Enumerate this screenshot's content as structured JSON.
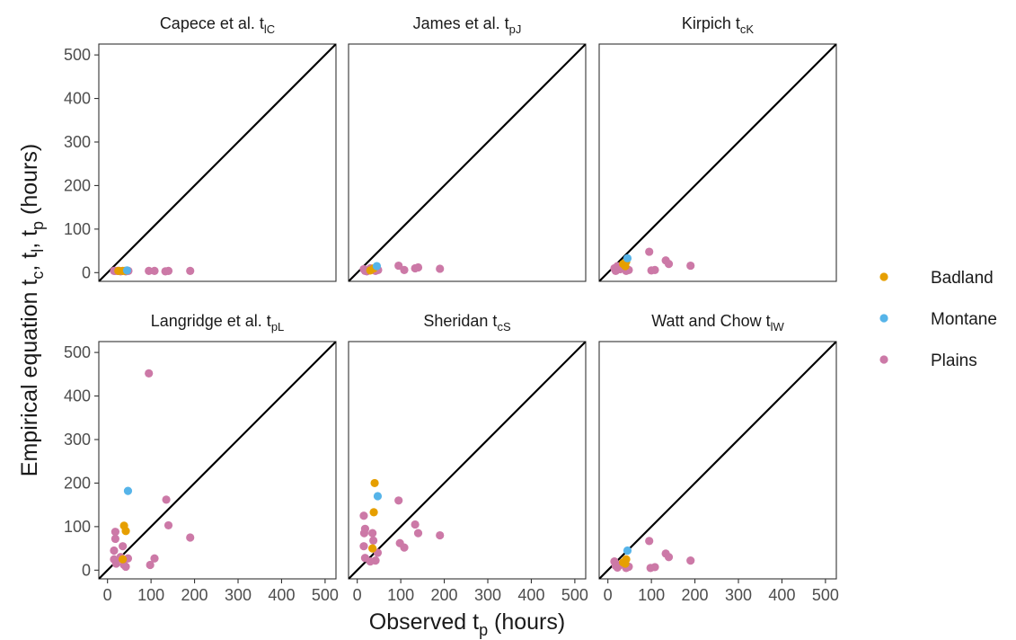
{
  "chart_data": {
    "type": "scatter",
    "xlabel_main": "Observed t",
    "xlabel_sub": "p",
    "xlabel_tail": " (hours)",
    "ylabel_segments": [
      {
        "t": "Empirical equation t",
        "sub": "c"
      },
      {
        "t": ", t",
        "sub": "l"
      },
      {
        "t": ", t",
        "sub": "p"
      },
      {
        "t": " (hours)",
        "sub": ""
      }
    ],
    "xlim": [
      -20,
      525
    ],
    "ylim": [
      -20,
      525
    ],
    "x_ticks": [
      0,
      100,
      200,
      300,
      400,
      500
    ],
    "y_ticks": [
      0,
      100,
      200,
      300,
      400,
      500
    ],
    "legend": [
      {
        "name": "Badland",
        "color": "#E69F00"
      },
      {
        "name": "Montane",
        "color": "#56B4E9"
      },
      {
        "name": "Plains",
        "color": "#CC79A7"
      }
    ],
    "reference_line": "1:1",
    "panels": [
      {
        "title": "Capece et al. t",
        "sub": "lC",
        "points": [
          {
            "g": "Plains",
            "x": 15,
            "y": 4
          },
          {
            "g": "Plains",
            "x": 18,
            "y": 4
          },
          {
            "g": "Plains",
            "x": 22,
            "y": 4
          },
          {
            "g": "Plains",
            "x": 27,
            "y": 4
          },
          {
            "g": "Plains",
            "x": 30,
            "y": 3
          },
          {
            "g": "Plains",
            "x": 42,
            "y": 3
          },
          {
            "g": "Plains",
            "x": 48,
            "y": 4
          },
          {
            "g": "Plains",
            "x": 95,
            "y": 4
          },
          {
            "g": "Plains",
            "x": 108,
            "y": 4
          },
          {
            "g": "Plains",
            "x": 133,
            "y": 3
          },
          {
            "g": "Plains",
            "x": 140,
            "y": 4
          },
          {
            "g": "Plains",
            "x": 190,
            "y": 4
          },
          {
            "g": "Badland",
            "x": 25,
            "y": 4
          },
          {
            "g": "Badland",
            "x": 35,
            "y": 4
          },
          {
            "g": "Badland",
            "x": 40,
            "y": 4
          },
          {
            "g": "Montane",
            "x": 45,
            "y": 5
          }
        ]
      },
      {
        "title": "James et al. t",
        "sub": "pJ",
        "points": [
          {
            "g": "Plains",
            "x": 15,
            "y": 8
          },
          {
            "g": "Plains",
            "x": 18,
            "y": 4
          },
          {
            "g": "Plains",
            "x": 22,
            "y": 3
          },
          {
            "g": "Plains",
            "x": 30,
            "y": 10
          },
          {
            "g": "Plains",
            "x": 42,
            "y": 4
          },
          {
            "g": "Plains",
            "x": 48,
            "y": 6
          },
          {
            "g": "Plains",
            "x": 95,
            "y": 16
          },
          {
            "g": "Plains",
            "x": 108,
            "y": 6
          },
          {
            "g": "Plains",
            "x": 133,
            "y": 10
          },
          {
            "g": "Plains",
            "x": 140,
            "y": 12
          },
          {
            "g": "Plains",
            "x": 190,
            "y": 9
          },
          {
            "g": "Badland",
            "x": 30,
            "y": 5
          },
          {
            "g": "Badland",
            "x": 38,
            "y": 10
          },
          {
            "g": "Montane",
            "x": 45,
            "y": 15
          }
        ]
      },
      {
        "title": "Kirpich t",
        "sub": "cK",
        "points": [
          {
            "g": "Plains",
            "x": 15,
            "y": 10
          },
          {
            "g": "Plains",
            "x": 18,
            "y": 4
          },
          {
            "g": "Plains",
            "x": 22,
            "y": 15
          },
          {
            "g": "Plains",
            "x": 28,
            "y": 8
          },
          {
            "g": "Plains",
            "x": 42,
            "y": 4
          },
          {
            "g": "Plains",
            "x": 48,
            "y": 6
          },
          {
            "g": "Plains",
            "x": 95,
            "y": 48
          },
          {
            "g": "Plains",
            "x": 100,
            "y": 5
          },
          {
            "g": "Plains",
            "x": 108,
            "y": 6
          },
          {
            "g": "Plains",
            "x": 133,
            "y": 28
          },
          {
            "g": "Plains",
            "x": 140,
            "y": 20
          },
          {
            "g": "Plains",
            "x": 190,
            "y": 16
          },
          {
            "g": "Badland",
            "x": 35,
            "y": 20
          },
          {
            "g": "Badland",
            "x": 40,
            "y": 15
          },
          {
            "g": "Badland",
            "x": 42,
            "y": 25
          },
          {
            "g": "Montane",
            "x": 45,
            "y": 33
          }
        ]
      },
      {
        "title": "Langridge et al. t",
        "sub": "pL",
        "points": [
          {
            "g": "Plains",
            "x": 15,
            "y": 45
          },
          {
            "g": "Plains",
            "x": 18,
            "y": 88
          },
          {
            "g": "Plains",
            "x": 18,
            "y": 72
          },
          {
            "g": "Plains",
            "x": 15,
            "y": 25
          },
          {
            "g": "Plains",
            "x": 20,
            "y": 15
          },
          {
            "g": "Plains",
            "x": 30,
            "y": 30
          },
          {
            "g": "Plains",
            "x": 35,
            "y": 55
          },
          {
            "g": "Plains",
            "x": 38,
            "y": 12
          },
          {
            "g": "Plains",
            "x": 42,
            "y": 8
          },
          {
            "g": "Plains",
            "x": 47,
            "y": 27
          },
          {
            "g": "Plains",
            "x": 95,
            "y": 452
          },
          {
            "g": "Plains",
            "x": 98,
            "y": 12
          },
          {
            "g": "Plains",
            "x": 108,
            "y": 27
          },
          {
            "g": "Plains",
            "x": 135,
            "y": 162
          },
          {
            "g": "Plains",
            "x": 140,
            "y": 103
          },
          {
            "g": "Plains",
            "x": 190,
            "y": 75
          },
          {
            "g": "Badland",
            "x": 38,
            "y": 102
          },
          {
            "g": "Badland",
            "x": 42,
            "y": 90
          },
          {
            "g": "Badland",
            "x": 35,
            "y": 25
          },
          {
            "g": "Montane",
            "x": 47,
            "y": 182
          }
        ]
      },
      {
        "title": "Sheridan t",
        "sub": "cS",
        "points": [
          {
            "g": "Plains",
            "x": 15,
            "y": 125
          },
          {
            "g": "Plains",
            "x": 18,
            "y": 95
          },
          {
            "g": "Plains",
            "x": 16,
            "y": 85
          },
          {
            "g": "Plains",
            "x": 15,
            "y": 55
          },
          {
            "g": "Plains",
            "x": 18,
            "y": 28
          },
          {
            "g": "Plains",
            "x": 30,
            "y": 20
          },
          {
            "g": "Plains",
            "x": 35,
            "y": 85
          },
          {
            "g": "Plains",
            "x": 37,
            "y": 68
          },
          {
            "g": "Plains",
            "x": 42,
            "y": 22
          },
          {
            "g": "Plains",
            "x": 47,
            "y": 40
          },
          {
            "g": "Plains",
            "x": 95,
            "y": 160
          },
          {
            "g": "Plains",
            "x": 98,
            "y": 62
          },
          {
            "g": "Plains",
            "x": 108,
            "y": 52
          },
          {
            "g": "Plains",
            "x": 133,
            "y": 105
          },
          {
            "g": "Plains",
            "x": 140,
            "y": 85
          },
          {
            "g": "Plains",
            "x": 190,
            "y": 80
          },
          {
            "g": "Badland",
            "x": 40,
            "y": 200
          },
          {
            "g": "Badland",
            "x": 38,
            "y": 133
          },
          {
            "g": "Badland",
            "x": 35,
            "y": 50
          },
          {
            "g": "Montane",
            "x": 47,
            "y": 170
          }
        ]
      },
      {
        "title": "Watt and Chow t",
        "sub": "lW",
        "points": [
          {
            "g": "Plains",
            "x": 15,
            "y": 20
          },
          {
            "g": "Plains",
            "x": 18,
            "y": 10
          },
          {
            "g": "Plains",
            "x": 22,
            "y": 6
          },
          {
            "g": "Plains",
            "x": 28,
            "y": 12
          },
          {
            "g": "Plains",
            "x": 42,
            "y": 5
          },
          {
            "g": "Plains",
            "x": 48,
            "y": 8
          },
          {
            "g": "Plains",
            "x": 95,
            "y": 67
          },
          {
            "g": "Plains",
            "x": 98,
            "y": 5
          },
          {
            "g": "Plains",
            "x": 108,
            "y": 7
          },
          {
            "g": "Plains",
            "x": 133,
            "y": 38
          },
          {
            "g": "Plains",
            "x": 140,
            "y": 30
          },
          {
            "g": "Plains",
            "x": 190,
            "y": 22
          },
          {
            "g": "Badland",
            "x": 35,
            "y": 18
          },
          {
            "g": "Badland",
            "x": 40,
            "y": 15
          },
          {
            "g": "Badland",
            "x": 42,
            "y": 25
          },
          {
            "g": "Montane",
            "x": 45,
            "y": 45
          }
        ]
      }
    ]
  }
}
